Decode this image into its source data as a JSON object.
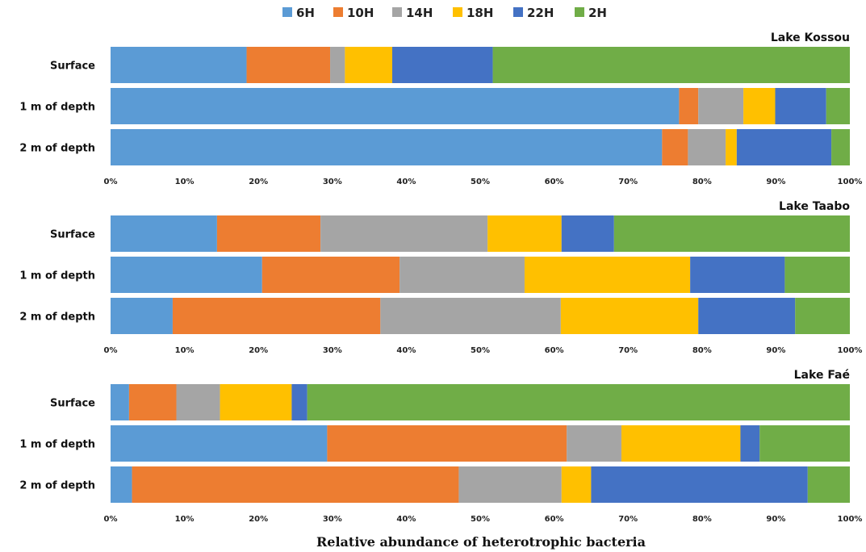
{
  "colors": {
    "6H": "#5B9BD5",
    "10H": "#ED7D31",
    "14H": "#A5A5A5",
    "18H": "#FFC000",
    "22H": "#4472C4",
    "2H": "#70AD47"
  },
  "legend": [
    "6H",
    "10H",
    "14H",
    "18H",
    "22H",
    "2H"
  ],
  "xlabel": "Relative abundance of heterotrophic  bacteria",
  "chart_data": [
    {
      "type": "bar",
      "orientation": "horizontal",
      "stacked": "percent",
      "title": "Lake Kossou",
      "categories": [
        "Surface",
        "1 m of depth",
        "2 m of depth"
      ],
      "x_ticks": [
        "0%",
        "10%",
        "20%",
        "30%",
        "40%",
        "50%",
        "60%",
        "70%",
        "80%",
        "90%",
        "100%"
      ],
      "xlim": [
        0,
        100
      ],
      "series": [
        {
          "name": "6H",
          "values": [
            18.4,
            76.9,
            74.6
          ]
        },
        {
          "name": "10H",
          "values": [
            11.3,
            2.6,
            3.5
          ]
        },
        {
          "name": "14H",
          "values": [
            2.0,
            6.1,
            5.1
          ]
        },
        {
          "name": "18H",
          "values": [
            6.4,
            4.3,
            1.5
          ]
        },
        {
          "name": "22H",
          "values": [
            13.6,
            6.9,
            12.8
          ]
        },
        {
          "name": "2H",
          "values": [
            48.3,
            3.2,
            2.5
          ]
        }
      ]
    },
    {
      "type": "bar",
      "orientation": "horizontal",
      "stacked": "percent",
      "title": "Lake Taabo",
      "categories": [
        "Surface",
        "1 m of depth",
        "2 m of depth"
      ],
      "x_ticks": [
        "0%",
        "10%",
        "20%",
        "30%",
        "40%",
        "50%",
        "60%",
        "70%",
        "80%",
        "90%",
        "100%"
      ],
      "xlim": [
        0,
        100
      ],
      "series": [
        {
          "name": "6H",
          "values": [
            14.4,
            20.5,
            8.4
          ]
        },
        {
          "name": "10H",
          "values": [
            14.0,
            18.6,
            28.1
          ]
        },
        {
          "name": "14H",
          "values": [
            22.6,
            16.9,
            24.4
          ]
        },
        {
          "name": "18H",
          "values": [
            10.0,
            22.4,
            18.6
          ]
        },
        {
          "name": "22H",
          "values": [
            7.1,
            12.8,
            13.1
          ]
        },
        {
          "name": "2H",
          "values": [
            31.9,
            8.8,
            7.4
          ]
        }
      ]
    },
    {
      "type": "bar",
      "orientation": "horizontal",
      "stacked": "percent",
      "title": "Lake Faé",
      "categories": [
        "Surface",
        "1 m of depth",
        "2 m of depth"
      ],
      "x_ticks": [
        "0%",
        "10%",
        "20%",
        "30%",
        "40%",
        "50%",
        "60%",
        "70%",
        "80%",
        "90%",
        "100%"
      ],
      "xlim": [
        0,
        100
      ],
      "series": [
        {
          "name": "6H",
          "values": [
            2.5,
            29.3,
            2.9
          ]
        },
        {
          "name": "10H",
          "values": [
            6.4,
            32.4,
            44.2
          ]
        },
        {
          "name": "14H",
          "values": [
            5.9,
            7.4,
            13.9
          ]
        },
        {
          "name": "18H",
          "values": [
            9.7,
            16.1,
            4.0
          ]
        },
        {
          "name": "22H",
          "values": [
            2.1,
            2.6,
            29.3
          ]
        },
        {
          "name": "2H",
          "values": [
            73.4,
            12.2,
            5.7
          ]
        }
      ]
    }
  ]
}
